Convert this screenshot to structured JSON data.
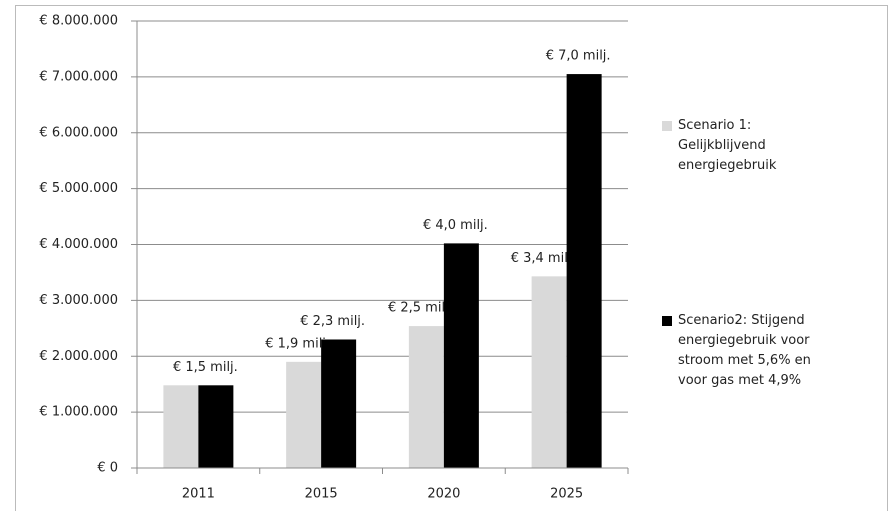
{
  "chart_data": {
    "type": "bar",
    "categories": [
      "2011",
      "2015",
      "2020",
      "2025"
    ],
    "series": [
      {
        "name": "Scenario 1: Gelijkblijvend energiegebruik",
        "color": "#d9d9d9",
        "values": [
          1480000,
          1900000,
          2540000,
          3430000
        ],
        "value_labels": [
          null,
          "€ 1,9 milj.",
          "€ 2,5 milj.",
          "€ 3,4 milj."
        ]
      },
      {
        "name": "Scenario2: Stijgend energiegebruik voor stroom met 5,6% en voor gas met 4,9%",
        "color": "#000000",
        "values": [
          1480000,
          2300000,
          4020000,
          7050000
        ],
        "value_labels": [
          "€ 1,5 milj.",
          "€ 2,3 milj.",
          "€ 4,0 milj.",
          "€ 7,0 milj."
        ]
      }
    ],
    "ylim": [
      0,
      8000000
    ],
    "yticks": [
      {
        "value": 0,
        "label": "€ 0"
      },
      {
        "value": 1000000,
        "label": "€ 1.000.000"
      },
      {
        "value": 2000000,
        "label": "€ 2.000.000"
      },
      {
        "value": 3000000,
        "label": "€ 3.000.000"
      },
      {
        "value": 4000000,
        "label": "€ 4.000.000"
      },
      {
        "value": 5000000,
        "label": "€ 5.000.000"
      },
      {
        "value": 6000000,
        "label": "€ 6.000.000"
      },
      {
        "value": 7000000,
        "label": "€ 7.000.000"
      },
      {
        "value": 8000000,
        "label": "€ 8.000.000"
      }
    ],
    "grid": true,
    "legend": "right"
  }
}
